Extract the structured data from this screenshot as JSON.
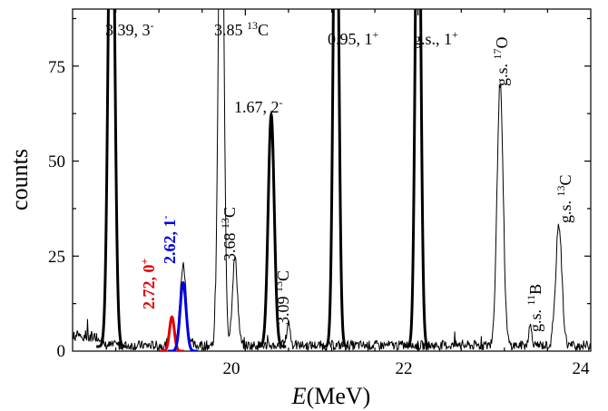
{
  "chart_data": {
    "type": "line",
    "xlabel_italic": "E",
    "xlabel_rest": "(MeV)",
    "ylabel": "counts",
    "xlim": [
      18,
      24
    ],
    "ylim": [
      0,
      90
    ],
    "x_ticks": [
      "20",
      "22",
      "24"
    ],
    "y_ticks": [
      "0",
      "25",
      "50",
      "75"
    ],
    "grid": false,
    "legend": "none",
    "colors": {
      "spectrum": "#000000",
      "fit_272": "#e00000",
      "fit_262": "#0000e0"
    },
    "peaks": [
      {
        "x": 18.45,
        "y": 150,
        "width": 0.035,
        "thick": true
      },
      {
        "x": 19.72,
        "y": 150,
        "width": 0.03,
        "thick": false
      },
      {
        "x": 19.88,
        "y": 23,
        "width": 0.03,
        "thick": false
      },
      {
        "x": 20.3,
        "y": 61,
        "width": 0.035,
        "thick": true
      },
      {
        "x": 20.5,
        "y": 6,
        "width": 0.02,
        "thick": false
      },
      {
        "x": 21.05,
        "y": 150,
        "width": 0.03,
        "thick": true
      },
      {
        "x": 22.0,
        "y": 150,
        "width": 0.03,
        "thick": true
      },
      {
        "x": 22.95,
        "y": 69,
        "width": 0.035,
        "thick": false
      },
      {
        "x": 23.3,
        "y": 5,
        "width": 0.02,
        "thick": false
      },
      {
        "x": 23.63,
        "y": 32,
        "width": 0.035,
        "thick": false
      },
      {
        "x": 19.28,
        "y": 21,
        "width": 0.035,
        "thick": false
      },
      {
        "x": 19.15,
        "y": 7,
        "width": 0.025,
        "thick": false
      }
    ],
    "fits": [
      {
        "name": "2.72, 0+",
        "x": 19.15,
        "y": 9,
        "width": 0.028,
        "color": "#e00000"
      },
      {
        "name": "2.62, 1-",
        "x": 19.28,
        "y": 18,
        "width": 0.035,
        "color": "#0000e0"
      }
    ]
  },
  "labels": {
    "l339": "3.39, 3",
    "l339_sup": "-",
    "l385": "3.85 ",
    "l385_sup": "13",
    "l385_el": "C",
    "l095": "0.95, 1",
    "l095_sup": "+",
    "lgs1": "g.s., 1",
    "lgs1_sup": "+",
    "l167": "1.67, 2",
    "l167_sup": "-",
    "l17o_gs": "g.s. ",
    "l17o_sup": "17",
    "l17o_el": "O",
    "l368": "3.68 ",
    "l368_sup": "13",
    "l368_el": "C",
    "l309": "3.09 ",
    "l309_sup": "13",
    "l309_el": "C",
    "l11b_gs": "g.s. ",
    "l11b_sup": "11",
    "l11b_el": "B",
    "l13c_gs": "g.s. ",
    "l13c_sup": "13",
    "l13c_el": "C",
    "l272": "2.72, 0",
    "l272_sup": "+",
    "l262": "2.62, 1",
    "l262_sup": "-"
  }
}
